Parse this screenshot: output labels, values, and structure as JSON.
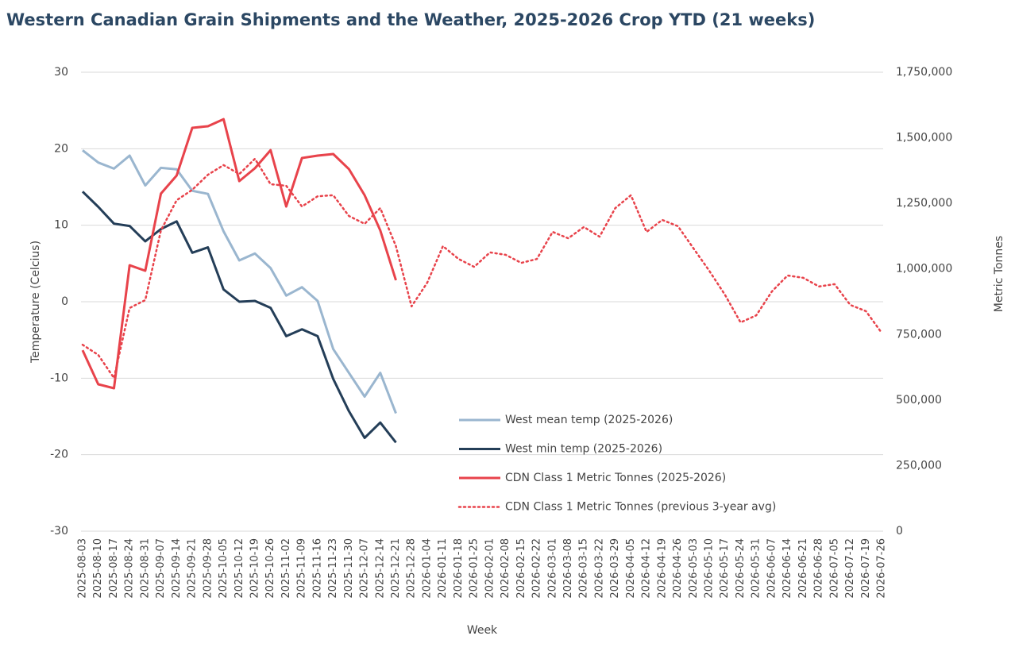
{
  "chart_data": {
    "type": "line",
    "title": "Western Canadian Grain Shipments and the Weather, 2025-2026 Crop YTD (21 weeks)",
    "x_label": "Week",
    "y_label": "Temperature (Celcius)",
    "y2_label": "Metric Tonnes",
    "categories": [
      "2025-08-03",
      "2025-08-10",
      "2025-08-17",
      "2025-08-24",
      "2025-08-31",
      "2025-09-07",
      "2025-09-14",
      "2025-09-21",
      "2025-09-28",
      "2025-10-05",
      "2025-10-12",
      "2025-10-19",
      "2025-10-26",
      "2025-11-02",
      "2025-11-09",
      "2025-11-16",
      "2025-11-23",
      "2025-11-30",
      "2025-12-07",
      "2025-12-14",
      "2025-12-21",
      "2025-12-28",
      "2026-01-04",
      "2026-01-11",
      "2026-01-18",
      "2026-01-25",
      "2026-02-01",
      "2026-02-08",
      "2026-02-15",
      "2026-02-22",
      "2026-03-01",
      "2026-03-08",
      "2026-03-15",
      "2026-03-22",
      "2026-03-29",
      "2026-04-05",
      "2026-04-12",
      "2026-04-19",
      "2026-04-26",
      "2026-05-03",
      "2026-05-10",
      "2026-05-17",
      "2026-05-24",
      "2026-05-31",
      "2026-06-07",
      "2026-06-14",
      "2026-06-21",
      "2026-06-28",
      "2026-07-05",
      "2026-07-12",
      "2026-07-19",
      "2026-07-26"
    ],
    "series": [
      {
        "name": "West mean temp (2025-2026)",
        "color": "#9ab6cf",
        "dash": false,
        "values": [
          19.8,
          18.2,
          17.4,
          19.1,
          15.2,
          17.5,
          17.3,
          14.5,
          14.1,
          9.2,
          5.4,
          6.3,
          4.4,
          0.8,
          1.9,
          0.1,
          -6.2,
          -9.3,
          -12.4,
          -9.3,
          -14.6,
          null,
          null,
          null,
          null,
          null,
          null,
          null,
          null,
          null,
          null,
          null,
          null,
          null,
          null,
          null,
          null,
          null,
          null,
          null,
          null,
          null,
          null,
          null,
          null,
          null,
          null,
          null,
          null,
          null,
          null,
          null
        ]
      },
      {
        "name": "West min temp (2025-2026)",
        "color": "#243e58",
        "dash": false,
        "values": [
          14.4,
          12.4,
          10.2,
          9.9,
          7.9,
          9.5,
          10.5,
          6.4,
          7.1,
          1.6,
          0.0,
          0.1,
          -0.8,
          -4.5,
          -3.6,
          -4.5,
          -10.1,
          -14.3,
          -17.8,
          -15.8,
          -18.4,
          null,
          null,
          null,
          null,
          null,
          null,
          null,
          null,
          null,
          null,
          null,
          null,
          null,
          null,
          null,
          null,
          null,
          null,
          null,
          null,
          null,
          null,
          null,
          null,
          null,
          null,
          null,
          null,
          null,
          null,
          null
        ]
      },
      {
        "name": "CDN Class 1 Metric Tonnes (2025-2026)",
        "color": "#e8434b",
        "dash": false,
        "axis": "y2",
        "values": [
          690000,
          560000,
          545000,
          1014000,
          993000,
          1287000,
          1356000,
          1538000,
          1544000,
          1571000,
          1335000,
          1384000,
          1453000,
          1238000,
          1423000,
          1432000,
          1438000,
          1381000,
          1281000,
          1147000,
          957000,
          null,
          null,
          null,
          null,
          null,
          null,
          null,
          null,
          null,
          null,
          null,
          null,
          null,
          null,
          null,
          null,
          null,
          null,
          null,
          null,
          null,
          null,
          null,
          null,
          null,
          null,
          null,
          null,
          null,
          null,
          null
        ]
      },
      {
        "name": "CDN Class 1 Metric Tonnes (previous 3-year avg)",
        "color": "#e8434b",
        "dash": true,
        "axis": "y2",
        "values": [
          711000,
          672000,
          584000,
          851000,
          881000,
          1147000,
          1262000,
          1302000,
          1359000,
          1396000,
          1362000,
          1420000,
          1323000,
          1317000,
          1238000,
          1277000,
          1281000,
          1202000,
          1172000,
          1232000,
          1087000,
          857000,
          948000,
          1087000,
          1038000,
          1008000,
          1063000,
          1054000,
          1023000,
          1038000,
          1141000,
          1117000,
          1160000,
          1123000,
          1232000,
          1281000,
          1141000,
          1187000,
          1163000,
          1078000,
          993000,
          902000,
          796000,
          823000,
          914000,
          975000,
          966000,
          933000,
          942000,
          863000,
          839000,
          757000
        ]
      }
    ],
    "ylim": [
      -30,
      30
    ],
    "yticks": [
      -30,
      -20,
      -10,
      0,
      10,
      20,
      30
    ],
    "y2lim": [
      0,
      1750000
    ],
    "y2ticks": [
      0,
      {
        "value": 250000,
        "label": "250,000"
      },
      {
        "value": 500000,
        "label": "500,000"
      },
      {
        "value": 750000,
        "label": "750,000"
      },
      {
        "value": 1000000,
        "label": "1,000,000"
      },
      {
        "value": 1250000,
        "label": "1,250,000"
      },
      {
        "value": 1500000,
        "label": "1,500,000"
      },
      {
        "value": 1750000,
        "label": "1,750,000"
      }
    ],
    "grid": true
  }
}
